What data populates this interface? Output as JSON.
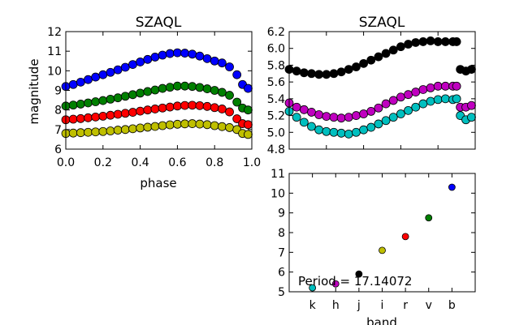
{
  "chart_data": [
    {
      "type": "scatter",
      "title": "SZAQL",
      "xlabel": "phase",
      "ylabel": "magnitude",
      "xlim": [
        0.0,
        1.0
      ],
      "ylim": [
        12,
        6
      ],
      "y_inverted": true,
      "xticks": [
        "0.0",
        "0.2",
        "0.4",
        "0.6",
        "0.8",
        "1.0"
      ],
      "yticks": [
        "6",
        "7",
        "8",
        "9",
        "10",
        "11",
        "12"
      ],
      "grid": false,
      "series": [
        {
          "band": "i",
          "color": "#bfbf00",
          "x": [
            0.0,
            0.04,
            0.08,
            0.12,
            0.16,
            0.2,
            0.24,
            0.28,
            0.32,
            0.36,
            0.4,
            0.44,
            0.48,
            0.52,
            0.56,
            0.6,
            0.64,
            0.68,
            0.72,
            0.76,
            0.8,
            0.84,
            0.88,
            0.92,
            0.95,
            0.98
          ],
          "y": [
            6.8,
            6.82,
            6.84,
            6.86,
            6.88,
            6.9,
            6.93,
            6.97,
            7.0,
            7.04,
            7.08,
            7.12,
            7.16,
            7.2,
            7.24,
            7.27,
            7.29,
            7.3,
            7.28,
            7.25,
            7.2,
            7.15,
            7.1,
            7.0,
            6.8,
            6.75
          ]
        },
        {
          "band": "r",
          "color": "#ff0000",
          "x": [
            0.0,
            0.04,
            0.08,
            0.12,
            0.16,
            0.2,
            0.24,
            0.28,
            0.32,
            0.36,
            0.4,
            0.44,
            0.48,
            0.52,
            0.56,
            0.6,
            0.64,
            0.68,
            0.72,
            0.76,
            0.8,
            0.84,
            0.88,
            0.92,
            0.95,
            0.98
          ],
          "y": [
            7.5,
            7.53,
            7.56,
            7.6,
            7.64,
            7.68,
            7.73,
            7.78,
            7.83,
            7.88,
            7.94,
            8.0,
            8.05,
            8.1,
            8.15,
            8.2,
            8.23,
            8.24,
            8.22,
            8.18,
            8.12,
            8.05,
            7.9,
            7.55,
            7.3,
            7.25
          ]
        },
        {
          "band": "v",
          "color": "#007f00",
          "x": [
            0.0,
            0.04,
            0.08,
            0.12,
            0.16,
            0.2,
            0.24,
            0.28,
            0.32,
            0.36,
            0.4,
            0.44,
            0.48,
            0.52,
            0.56,
            0.6,
            0.64,
            0.68,
            0.72,
            0.76,
            0.8,
            0.84,
            0.88,
            0.92,
            0.95,
            0.98
          ],
          "y": [
            8.2,
            8.25,
            8.3,
            8.36,
            8.42,
            8.48,
            8.55,
            8.62,
            8.7,
            8.78,
            8.86,
            8.94,
            9.02,
            9.1,
            9.16,
            9.22,
            9.22,
            9.2,
            9.15,
            9.08,
            9.0,
            8.9,
            8.75,
            8.4,
            8.1,
            8.0
          ]
        },
        {
          "band": "b",
          "color": "#0000ff",
          "x": [
            0.0,
            0.04,
            0.08,
            0.12,
            0.16,
            0.2,
            0.24,
            0.28,
            0.32,
            0.36,
            0.4,
            0.44,
            0.48,
            0.52,
            0.56,
            0.6,
            0.64,
            0.68,
            0.72,
            0.76,
            0.8,
            0.84,
            0.88,
            0.92,
            0.95,
            0.98
          ],
          "y": [
            9.2,
            9.3,
            9.42,
            9.55,
            9.68,
            9.8,
            9.92,
            10.05,
            10.18,
            10.32,
            10.45,
            10.58,
            10.7,
            10.8,
            10.88,
            10.92,
            10.9,
            10.85,
            10.75,
            10.62,
            10.5,
            10.4,
            10.2,
            9.8,
            9.3,
            9.1
          ]
        }
      ]
    },
    {
      "type": "scatter",
      "title": "SZAQL",
      "xlabel": "",
      "ylabel": "",
      "xlim": [
        0.0,
        1.0
      ],
      "ylim": [
        6.2,
        4.8
      ],
      "y_inverted": true,
      "xticks": [],
      "yticks": [
        "4.8",
        "5.0",
        "5.2",
        "5.4",
        "5.6",
        "5.8",
        "6.0",
        "6.2"
      ],
      "grid": false,
      "series": [
        {
          "band": "k",
          "color": "#00bfbf",
          "x": [
            0.0,
            0.04,
            0.08,
            0.12,
            0.16,
            0.2,
            0.24,
            0.28,
            0.32,
            0.36,
            0.4,
            0.44,
            0.48,
            0.52,
            0.56,
            0.6,
            0.64,
            0.68,
            0.72,
            0.76,
            0.8,
            0.84,
            0.88,
            0.9,
            0.92,
            0.95,
            0.98
          ],
          "y": [
            5.25,
            5.18,
            5.12,
            5.07,
            5.03,
            5.01,
            5.0,
            4.99,
            4.98,
            5.0,
            5.03,
            5.06,
            5.1,
            5.14,
            5.18,
            5.22,
            5.26,
            5.3,
            5.34,
            5.37,
            5.39,
            5.4,
            5.39,
            5.4,
            5.2,
            5.15,
            5.18
          ]
        },
        {
          "band": "h",
          "color": "#bf00bf",
          "x": [
            0.0,
            0.04,
            0.08,
            0.12,
            0.16,
            0.2,
            0.24,
            0.28,
            0.32,
            0.36,
            0.4,
            0.44,
            0.48,
            0.52,
            0.56,
            0.6,
            0.64,
            0.68,
            0.72,
            0.76,
            0.8,
            0.84,
            0.88,
            0.9,
            0.92,
            0.95,
            0.98
          ],
          "y": [
            5.35,
            5.3,
            5.27,
            5.24,
            5.21,
            5.19,
            5.18,
            5.17,
            5.18,
            5.2,
            5.22,
            5.25,
            5.29,
            5.34,
            5.38,
            5.42,
            5.45,
            5.48,
            5.51,
            5.53,
            5.55,
            5.55,
            5.55,
            5.55,
            5.3,
            5.3,
            5.32
          ]
        },
        {
          "band": "j",
          "color": "#000000",
          "x": [
            0.0,
            0.04,
            0.08,
            0.12,
            0.16,
            0.2,
            0.24,
            0.28,
            0.32,
            0.36,
            0.4,
            0.44,
            0.48,
            0.52,
            0.56,
            0.6,
            0.64,
            0.68,
            0.72,
            0.76,
            0.8,
            0.84,
            0.88,
            0.9,
            0.92,
            0.95,
            0.98
          ],
          "y": [
            5.75,
            5.73,
            5.71,
            5.7,
            5.69,
            5.69,
            5.7,
            5.72,
            5.75,
            5.78,
            5.82,
            5.86,
            5.9,
            5.94,
            5.98,
            6.02,
            6.05,
            6.07,
            6.08,
            6.09,
            6.08,
            6.08,
            6.08,
            6.08,
            5.75,
            5.73,
            5.75
          ]
        }
      ]
    },
    {
      "type": "scatter",
      "title": "",
      "xlabel": "band",
      "ylabel": "",
      "ylim": [
        11,
        5
      ],
      "y_inverted": true,
      "categories": [
        "k",
        "h",
        "j",
        "i",
        "r",
        "v",
        "b"
      ],
      "yticks": [
        "5",
        "6",
        "7",
        "8",
        "9",
        "10",
        "11"
      ],
      "grid": false,
      "annotation": "Period = 17.14072",
      "points": [
        {
          "band": "k",
          "value": 5.2,
          "color": "#00bfbf"
        },
        {
          "band": "h",
          "value": 5.4,
          "color": "#bf00bf"
        },
        {
          "band": "j",
          "value": 5.9,
          "color": "#000000"
        },
        {
          "band": "i",
          "value": 7.1,
          "color": "#bfbf00"
        },
        {
          "band": "r",
          "value": 7.8,
          "color": "#ff0000"
        },
        {
          "band": "v",
          "value": 8.75,
          "color": "#007f00"
        },
        {
          "band": "b",
          "value": 10.3,
          "color": "#0000ff"
        }
      ]
    }
  ]
}
